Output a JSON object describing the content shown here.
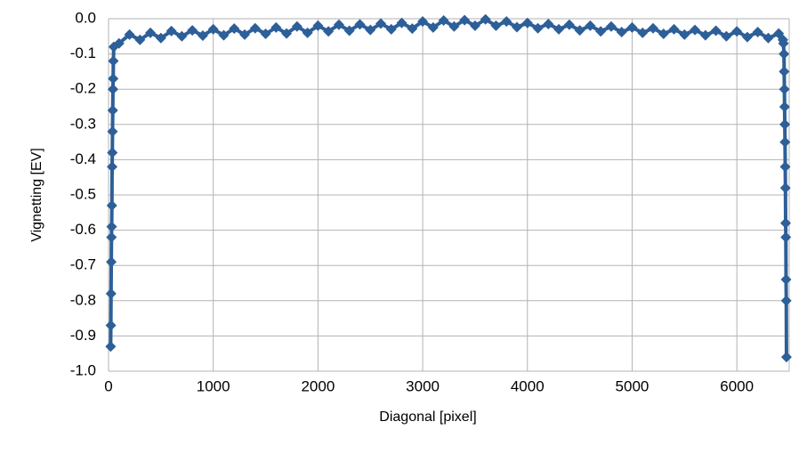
{
  "chart_data": {
    "type": "line",
    "x_label": "Diagonal [pixel]",
    "y_label": "Vignetting [EV]",
    "xlim": [
      0,
      6500
    ],
    "ylim": [
      -1,
      0
    ],
    "xticks": [
      0,
      1000,
      2000,
      3000,
      4000,
      5000,
      6000
    ],
    "yticks": [
      {
        "value": 0,
        "label": "0.0"
      },
      -0.1,
      -0.2,
      -0.3,
      -0.4,
      -0.5,
      -0.6,
      -0.7,
      -0.8,
      -0.9,
      {
        "value": -1,
        "label": "-1.0"
      }
    ],
    "grid": true,
    "series": [
      {
        "color": "#2d5f98",
        "x": [
          20,
          22,
          24,
          26,
          28,
          30,
          32,
          34,
          36,
          38,
          40,
          42,
          44,
          46,
          50,
          100,
          200,
          300,
          400,
          500,
          600,
          700,
          800,
          900,
          1000,
          1100,
          1200,
          1300,
          1400,
          1500,
          1600,
          1700,
          1800,
          1900,
          2000,
          2100,
          2200,
          2300,
          2400,
          2500,
          2600,
          2700,
          2800,
          2900,
          3000,
          3100,
          3200,
          3300,
          3400,
          3500,
          3600,
          3700,
          3800,
          3900,
          4000,
          4100,
          4200,
          4300,
          4400,
          4500,
          4600,
          4700,
          4800,
          4900,
          5000,
          5100,
          5200,
          5300,
          5400,
          5500,
          5600,
          5700,
          5800,
          5900,
          6000,
          6100,
          6200,
          6300,
          6400,
          6440,
          6445,
          6450,
          6452,
          6454,
          6456,
          6458,
          6460,
          6462,
          6464,
          6466,
          6468,
          6470,
          6472,
          6474
        ],
        "values": [
          -0.93,
          -0.87,
          -0.78,
          -0.69,
          -0.62,
          -0.59,
          -0.53,
          -0.42,
          -0.38,
          -0.32,
          -0.26,
          -0.2,
          -0.17,
          -0.12,
          -0.08,
          -0.07,
          -0.045,
          -0.06,
          -0.04,
          -0.055,
          -0.035,
          -0.05,
          -0.033,
          -0.048,
          -0.03,
          -0.047,
          -0.028,
          -0.045,
          -0.027,
          -0.043,
          -0.025,
          -0.042,
          -0.022,
          -0.04,
          -0.02,
          -0.036,
          -0.017,
          -0.034,
          -0.016,
          -0.032,
          -0.014,
          -0.03,
          -0.012,
          -0.028,
          -0.008,
          -0.025,
          -0.005,
          -0.022,
          -0.004,
          -0.02,
          -0.002,
          -0.02,
          -0.008,
          -0.024,
          -0.012,
          -0.027,
          -0.015,
          -0.03,
          -0.017,
          -0.033,
          -0.02,
          -0.036,
          -0.022,
          -0.038,
          -0.025,
          -0.04,
          -0.027,
          -0.043,
          -0.03,
          -0.045,
          -0.032,
          -0.047,
          -0.034,
          -0.05,
          -0.036,
          -0.052,
          -0.038,
          -0.055,
          -0.042,
          -0.06,
          -0.07,
          -0.1,
          -0.15,
          -0.2,
          -0.25,
          -0.3,
          -0.35,
          -0.42,
          -0.48,
          -0.58,
          -0.62,
          -0.74,
          -0.8,
          -0.96
        ]
      }
    ]
  }
}
